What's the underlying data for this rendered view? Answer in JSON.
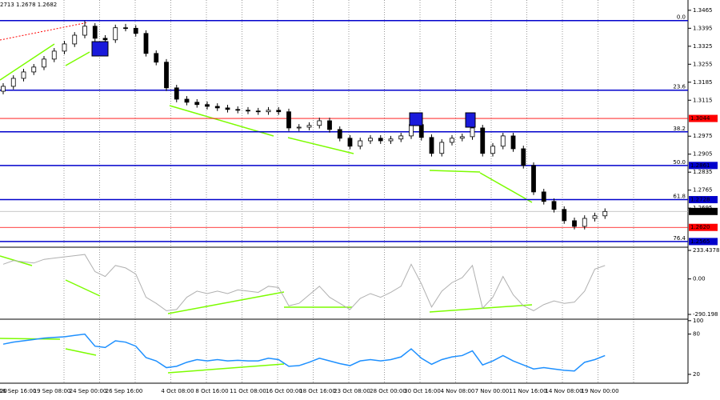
{
  "header": "2713 1.2678 1.2682",
  "chart_data": [
    {
      "type": "candlestick",
      "open": [
        1.315,
        1.3169,
        1.32,
        1.3225,
        1.3244,
        1.3275,
        1.3306,
        1.3334,
        1.3368,
        1.3403,
        1.3356,
        1.335,
        1.3397,
        1.3395,
        1.3375,
        1.3297,
        1.3263,
        1.3163,
        1.3119,
        1.3107,
        1.3098,
        1.3091,
        1.3085,
        1.3079,
        1.3076,
        1.3073,
        1.307,
        1.3076,
        1.307,
        1.3007,
        1.301,
        1.3017,
        1.3035,
        1.3001,
        1.2967,
        1.2936,
        1.2957,
        1.2967,
        1.2957,
        1.2964,
        1.2976,
        1.302,
        1.297,
        1.2908,
        1.2951,
        1.2967,
        1.2973,
        1.3007,
        1.2908,
        1.2936,
        1.2976,
        1.2926,
        1.2861,
        1.2758,
        1.2721,
        1.269,
        1.2646,
        1.2624,
        1.2655,
        1.2665
      ],
      "high": [
        1.3181,
        1.3212,
        1.3237,
        1.3256,
        1.3287,
        1.3318,
        1.3346,
        1.338,
        1.3425,
        1.3415,
        1.3368,
        1.3409,
        1.3412,
        1.3407,
        1.3387,
        1.3309,
        1.3275,
        1.3175,
        1.3131,
        1.3119,
        1.311,
        1.3103,
        1.3097,
        1.3091,
        1.3088,
        1.3085,
        1.3088,
        1.3088,
        1.3082,
        1.3022,
        1.3029,
        1.3047,
        1.3047,
        1.3013,
        1.2979,
        1.2969,
        1.2979,
        1.2979,
        1.2976,
        1.2988,
        1.3032,
        1.3032,
        1.2982,
        1.2963,
        1.2979,
        1.2985,
        1.3019,
        1.3019,
        1.2948,
        1.2988,
        1.2988,
        1.2938,
        1.2873,
        1.277,
        1.2733,
        1.2702,
        1.2658,
        1.2667,
        1.2677,
        1.2694
      ],
      "low": [
        1.3138,
        1.3157,
        1.3188,
        1.3213,
        1.3232,
        1.3263,
        1.3294,
        1.3322,
        1.3356,
        1.3344,
        1.3338,
        1.3338,
        1.3383,
        1.3363,
        1.3285,
        1.3251,
        1.3151,
        1.3107,
        1.3095,
        1.3086,
        1.3079,
        1.3073,
        1.3067,
        1.3064,
        1.3061,
        1.3058,
        1.3058,
        1.3058,
        1.2995,
        1.2995,
        1.2998,
        1.3005,
        1.2989,
        1.2955,
        1.2924,
        1.2924,
        1.2945,
        1.2945,
        1.2945,
        1.2952,
        1.2964,
        1.2958,
        1.2896,
        1.2896,
        1.2939,
        1.2955,
        1.2961,
        1.2896,
        1.2896,
        1.2924,
        1.2914,
        1.2849,
        1.2746,
        1.2709,
        1.2678,
        1.2634,
        1.2612,
        1.2612,
        1.2643,
        1.2653
      ],
      "close": [
        1.3169,
        1.32,
        1.3225,
        1.3244,
        1.3275,
        1.3306,
        1.3334,
        1.3368,
        1.3403,
        1.3356,
        1.335,
        1.3397,
        1.3395,
        1.3375,
        1.3297,
        1.3263,
        1.3163,
        1.3119,
        1.3107,
        1.3098,
        1.3091,
        1.3085,
        1.3079,
        1.3076,
        1.3073,
        1.307,
        1.3076,
        1.307,
        1.3007,
        1.301,
        1.3017,
        1.3035,
        1.3001,
        1.2967,
        1.2936,
        1.2957,
        1.2967,
        1.2957,
        1.2964,
        1.2976,
        1.302,
        1.297,
        1.2908,
        1.2951,
        1.2967,
        1.2973,
        1.3007,
        1.2908,
        1.2936,
        1.2976,
        1.2926,
        1.2861,
        1.2758,
        1.2721,
        1.269,
        1.2646,
        1.2624,
        1.2655,
        1.2665,
        1.2682
      ],
      "ylim": [
        1.3505,
        1.2546
      ],
      "yticks": [
        1.3465,
        1.3395,
        1.3325,
        1.3255,
        1.3185,
        1.3115,
        1.2975,
        1.2905,
        1.2835,
        1.2765,
        1.2695
      ],
      "levels": [
        {
          "value": 1.3425,
          "label": "0.0"
        },
        {
          "value": 1.3154,
          "label": "23.6"
        },
        {
          "value": 1.2992,
          "label": "38.2"
        },
        {
          "value": 1.2861,
          "label": "50.0"
        },
        {
          "value": 1.2728,
          "label": "61.8"
        },
        {
          "value": 1.2565,
          "label": "76.4"
        }
      ],
      "level_color": "#0000cc",
      "price_labels": [
        {
          "value": 1.3044,
          "label": "1.3044",
          "color": "#ff0000"
        },
        {
          "value": 1.2861,
          "label": "1.2861",
          "color": "#0000cc"
        },
        {
          "value": 1.2728,
          "label": "1.2728",
          "color": "#0000cc"
        },
        {
          "value": 1.2682,
          "label": "1.2682",
          "color": "#000000"
        },
        {
          "value": 1.262,
          "label": "1.2620",
          "color": "#ff0000"
        },
        {
          "value": 1.2565,
          "label": "1.2565",
          "color": "#0000cc"
        }
      ],
      "x_labels": [
        "20",
        "16 Sep 16:00",
        "19 Sep 08:00",
        "24 Sep 00:00",
        "26 Sep 16:00",
        "4 Oct 08:00",
        "8 Oct 16:00",
        "11 Oct 08:00",
        "16 Oct 00:00",
        "18 Oct 16:00",
        "23 Oct 08:00",
        "28 Oct 00:00",
        "30 Oct 16:00",
        "4 Nov 08:00",
        "7 Nov 00:00",
        "11 Nov 16:00",
        "14 Nov 08:00",
        "19 Nov 00:00"
      ]
    },
    {
      "type": "line",
      "color": "#b0b0b0",
      "values": [
        120,
        150,
        140,
        130,
        160,
        170,
        180,
        190,
        200,
        60,
        20,
        110,
        90,
        40,
        -150,
        -200,
        -260,
        -250,
        -150,
        -100,
        -120,
        -100,
        -120,
        -90,
        -100,
        -110,
        -60,
        -70,
        -220,
        -200,
        -130,
        -60,
        -150,
        -200,
        -250,
        -160,
        -120,
        -150,
        -110,
        -60,
        120,
        -40,
        -230,
        -100,
        -30,
        10,
        110,
        -240,
        -150,
        20,
        -130,
        -220,
        -260,
        -210,
        -180,
        -200,
        -190,
        -100,
        80,
        110
      ],
      "ylim": [
        253,
        -323
      ],
      "yticks": [
        233.4378,
        {
          "value": 0,
          "label": "0.00"
        },
        -290.198
      ]
    },
    {
      "type": "line",
      "color": "#1e90ff",
      "values": [
        65,
        68,
        70,
        72,
        74,
        75,
        76,
        78,
        80,
        62,
        60,
        70,
        68,
        62,
        45,
        40,
        30,
        32,
        38,
        42,
        40,
        42,
        40,
        41,
        40,
        40,
        44,
        42,
        32,
        33,
        38,
        44,
        40,
        36,
        33,
        40,
        42,
        40,
        42,
        46,
        58,
        44,
        35,
        42,
        46,
        48,
        55,
        34,
        40,
        48,
        40,
        34,
        28,
        30,
        28,
        26,
        25,
        38,
        42,
        48
      ],
      "ylim": [
        101,
        8
      ],
      "yticks": [
        100,
        80,
        20
      ]
    }
  ]
}
